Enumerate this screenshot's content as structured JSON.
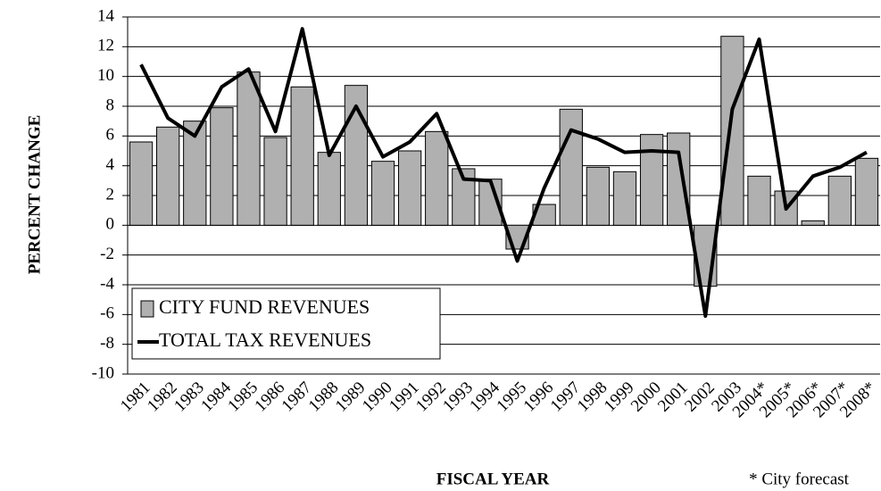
{
  "chart_data": {
    "type": "bar_line",
    "y_label": "PERCENT CHANGE",
    "x_label": "FISCAL YEAR",
    "footnote": "* City forecast",
    "categories": [
      "1981",
      "1982",
      "1983",
      "1984",
      "1985",
      "1986",
      "1987",
      "1988",
      "1989",
      "1990",
      "1991",
      "1992",
      "1993",
      "1994",
      "1995",
      "1996",
      "1997",
      "1998",
      "1999",
      "2000",
      "2001",
      "2002",
      "2003",
      "2004*",
      "2005*",
      "2006*",
      "2007*",
      "2008*"
    ],
    "series": [
      {
        "name": "CITY FUND REVENUES",
        "type": "bar",
        "color": "#b0b0b0",
        "values": [
          5.6,
          6.6,
          7.0,
          7.9,
          10.3,
          5.9,
          9.3,
          4.9,
          9.4,
          4.3,
          5.0,
          6.3,
          3.8,
          3.1,
          -1.6,
          1.4,
          7.8,
          3.9,
          3.6,
          6.1,
          6.2,
          -4.1,
          12.7,
          3.3,
          2.3,
          0.3,
          3.3,
          4.5
        ]
      },
      {
        "name": "TOTAL TAX REVENUES",
        "type": "line",
        "color": "#000000",
        "values": [
          10.8,
          7.2,
          6.0,
          9.3,
          10.5,
          6.3,
          13.2,
          4.7,
          8.0,
          4.6,
          5.6,
          7.5,
          3.1,
          3.0,
          -2.4,
          2.5,
          6.4,
          5.8,
          4.9,
          5.0,
          4.9,
          -6.1,
          7.8,
          12.5,
          1.1,
          3.3,
          3.9,
          4.9
        ]
      }
    ],
    "ylim": [
      -10,
      14
    ],
    "yticks": [
      -10,
      -8,
      -6,
      -4,
      -2,
      0,
      2,
      4,
      6,
      8,
      10,
      12,
      14
    ],
    "grid": true,
    "legend": "lower left"
  }
}
